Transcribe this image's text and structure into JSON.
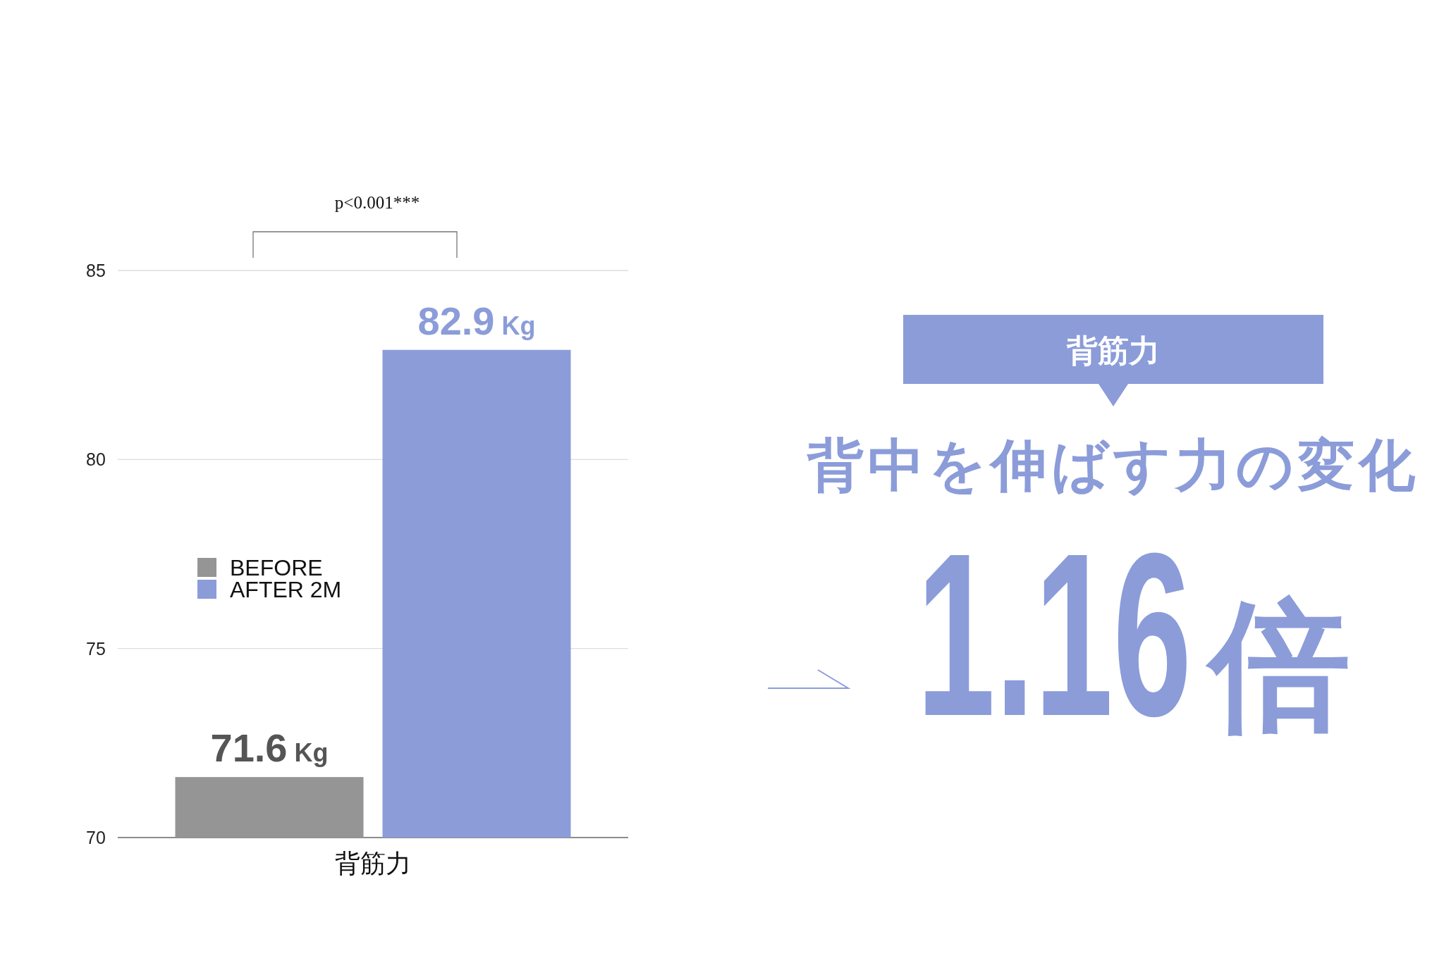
{
  "chart_data": [
    {
      "type": "bar",
      "categories": [
        "背筋力"
      ],
      "series": [
        {
          "name": "BEFORE",
          "color": "#959595",
          "values": [
            71.6
          ],
          "value_labels": [
            "71.6 Kg"
          ]
        },
        {
          "name": "AFTER 2M",
          "color": "#8b9cd9",
          "values": [
            82.9
          ],
          "value_labels": [
            "82.9 Kg"
          ]
        }
      ],
      "ylim": [
        70,
        85
      ],
      "yticks": [
        70,
        75,
        80,
        85
      ],
      "grid": "y",
      "legend": "left",
      "annotations": [
        "p<0.001***"
      ]
    },
    {
      "type": "other",
      "title": "背筋力",
      "subtitle": "背中を伸ばす力の変化",
      "annotations": [
        "1.16倍"
      ]
    }
  ]
}
